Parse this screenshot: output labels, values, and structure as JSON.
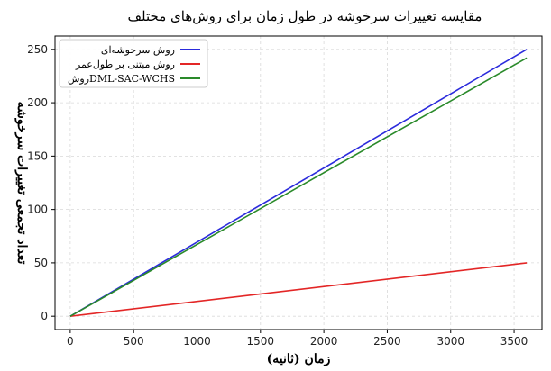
{
  "chart_data": {
    "type": "line",
    "title": "مقایسه تغییرات سرخوشه در طول زمان برای روش‌های مختلف",
    "xlabel": "زمان (ثانیه)",
    "ylabel": "تعداد تجمعی تغییرات سرخوشه",
    "xlim": [
      -120,
      3720
    ],
    "ylim": [
      -12.5,
      262.5
    ],
    "xticks": [
      0,
      500,
      1000,
      1500,
      2000,
      2500,
      3000,
      3500
    ],
    "yticks": [
      0,
      50,
      100,
      150,
      200,
      250
    ],
    "grid": true,
    "legend_position": "top-left",
    "series": [
      {
        "name": "روش سرخوشه‌ای",
        "color": "#2b2bdc",
        "x": [
          0,
          3600
        ],
        "y": [
          0,
          250
        ]
      },
      {
        "name": "روش مبتنی بر طول‌عمر",
        "color": "#e32626",
        "x": [
          0,
          3600
        ],
        "y": [
          0,
          50
        ]
      },
      {
        "name": "روشDML-SAC-WCHS",
        "color": "#2a8a2a",
        "x": [
          0,
          3600
        ],
        "y": [
          0,
          242
        ]
      }
    ]
  }
}
